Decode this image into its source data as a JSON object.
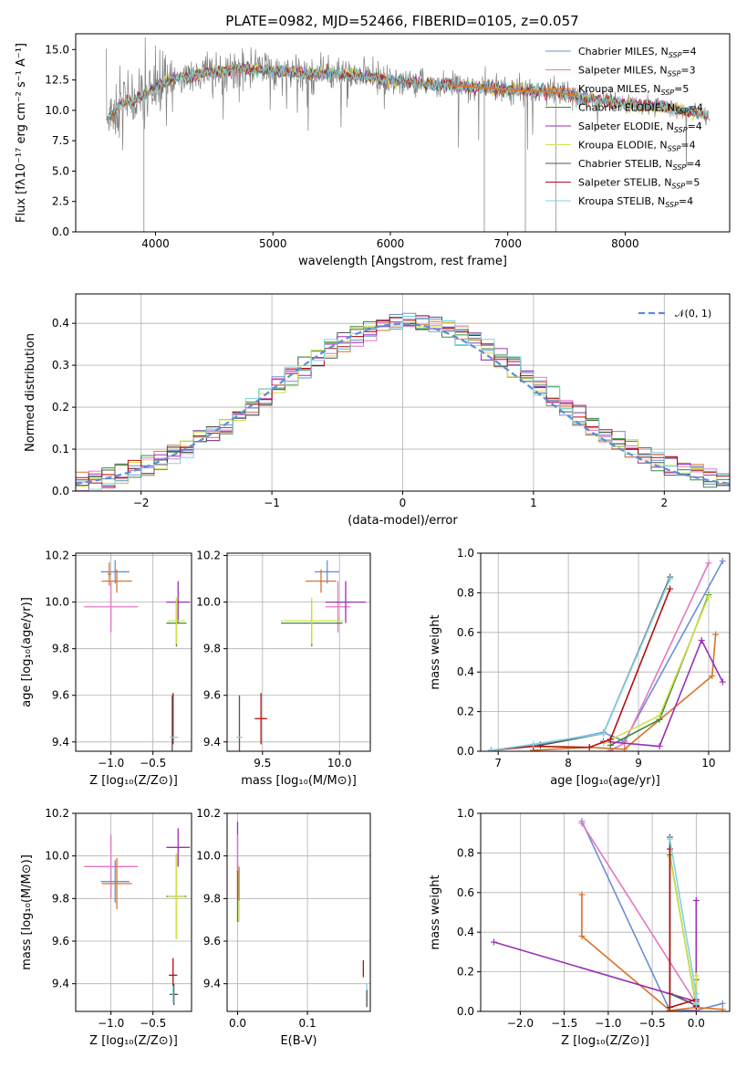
{
  "figure_title": "PLATE=0982, MJD=52466, FIBERID=0105, z=0.057",
  "colors": {
    "Chabrier MILES": "#6b8fd6",
    "Salpeter MILES": "#e377c2",
    "Kroupa MILES": "#d9742a",
    "Chabrier ELODIE": "#3a8a3a",
    "Salpeter ELODIE": "#9b30b5",
    "Kroupa ELODIE": "#d4e04a",
    "Chabrier STELIB": "#555555",
    "Salpeter STELIB": "#b01010",
    "Kroupa STELIB": "#7fd3e0",
    "data": "#808080",
    "gauss": "#5a8fd6",
    "extra_green": "#7cc030"
  },
  "chart_data": [
    {
      "id": "spectrum",
      "type": "line",
      "title": "PLATE=0982, MJD=52466, FIBERID=0105, z=0.057",
      "xlabel": "wavelength [Angstrom, rest frame]",
      "ylabel": "Flux [fλ10⁻¹⁷ erg cm⁻² s⁻¹ A⁻¹]",
      "xlim": [
        3320,
        8890
      ],
      "ylim": [
        0,
        16.3
      ],
      "xticks": [
        4000,
        5000,
        6000,
        7000,
        8000
      ],
      "yticks": [
        0.0,
        2.5,
        5.0,
        7.5,
        10.0,
        12.5,
        15.0
      ],
      "grid": false,
      "legend_position": "top-right",
      "legend": [
        {
          "label": "Chabrier MILES, N",
          "sub": "SSP",
          "suffix": "=4"
        },
        {
          "label": "Salpeter MILES, N",
          "sub": "SSP",
          "suffix": "=3"
        },
        {
          "label": "Kroupa MILES, N",
          "sub": "SSP",
          "suffix": "=5"
        },
        {
          "label": "Chabrier ELODIE, N",
          "sub": "SSP",
          "suffix": "=4"
        },
        {
          "label": "Salpeter ELODIE, N",
          "sub": "SSP",
          "suffix": "=4"
        },
        {
          "label": "Kroupa ELODIE, N",
          "sub": "SSP",
          "suffix": "=4"
        },
        {
          "label": "Chabrier STELIB, N",
          "sub": "SSP",
          "suffix": "=4"
        },
        {
          "label": "Salpeter STELIB, N",
          "sub": "SSP",
          "suffix": "=5"
        },
        {
          "label": "Kroupa STELIB, N",
          "sub": "SSP",
          "suffix": "=4"
        }
      ],
      "continuum": [
        [
          3600,
          9.5
        ],
        [
          3700,
          10.5
        ],
        [
          3800,
          10.8
        ],
        [
          3900,
          11.2
        ],
        [
          4000,
          11.8
        ],
        [
          4100,
          12.5
        ],
        [
          4300,
          12.8
        ],
        [
          4500,
          13.2
        ],
        [
          4800,
          13.4
        ],
        [
          5000,
          13.3
        ],
        [
          5200,
          13.1
        ],
        [
          5500,
          13.0
        ],
        [
          5800,
          12.7
        ],
        [
          6000,
          12.5
        ],
        [
          6300,
          12.2
        ],
        [
          6600,
          12.0
        ],
        [
          7000,
          11.7
        ],
        [
          7400,
          11.5
        ],
        [
          7600,
          11.2
        ],
        [
          7800,
          10.8
        ],
        [
          8000,
          10.5
        ],
        [
          8300,
          10.3
        ],
        [
          8600,
          9.8
        ],
        [
          8700,
          9.5
        ]
      ],
      "data_range": [
        3580,
        8720
      ],
      "model_range": [
        3600,
        8700
      ],
      "orange_segment": [
        6500,
        7600
      ],
      "dips": [
        {
          "x": 3900,
          "y": 0.0
        },
        {
          "x": 6800,
          "y": 0.0
        },
        {
          "x": 7150,
          "y": 0.0
        },
        {
          "x": 7410,
          "y": 0.0
        }
      ]
    },
    {
      "id": "residuals",
      "type": "histogram",
      "xlabel": "(data-model)/error",
      "ylabel": "Normed distribution",
      "xlim": [
        -2.5,
        2.5
      ],
      "ylim": [
        0,
        0.47
      ],
      "xticks": [
        -2,
        -1,
        0,
        1,
        2
      ],
      "yticks": [
        0.0,
        0.1,
        0.2,
        0.3,
        0.4
      ],
      "grid": true,
      "legend_position": "top-right",
      "legend_label": "𝒩(0, 1)",
      "bin_width": 0.1,
      "gaussian": {
        "mean": 0,
        "sigma": 1
      }
    },
    {
      "id": "age_vs_Z",
      "type": "errorbar",
      "xlabel": "Z [log₁₀(Z/Z⊙)]",
      "ylabel": "age  [log₁₀(age/yr)]",
      "xlim": [
        -1.42,
        -0.04
      ],
      "ylim": [
        9.36,
        10.21
      ],
      "xticks": [
        -1.0,
        -0.5
      ],
      "yticks": [
        9.4,
        9.6,
        9.8,
        10.0,
        10.2
      ],
      "grid": true,
      "points": [
        {
          "model": "Chabrier MILES",
          "x": -0.95,
          "y": 10.13,
          "xerr": 0.17,
          "yerr": 0.05
        },
        {
          "model": "Kroupa MILES",
          "x": -0.93,
          "y": 10.09,
          "xerr": 0.18,
          "yerr": 0.05
        },
        {
          "model": "Salpeter MILES",
          "x": -1.0,
          "y": 9.98,
          "xerr": 0.32,
          "yerr": 0.11
        },
        {
          "model": "Kroupa MILES",
          "x": -1.02,
          "y": 10.12,
          "xerr": 0.02,
          "yerr": 0.05
        },
        {
          "model": "Salpeter ELODIE",
          "x": -0.2,
          "y": 10.0,
          "xerr": 0.14,
          "yerr": 0.09
        },
        {
          "model": "Chabrier ELODIE",
          "x": -0.22,
          "y": 9.91,
          "xerr": 0.12,
          "yerr": 0.1
        },
        {
          "model": "Kroupa ELODIE",
          "x": -0.22,
          "y": 9.92,
          "xerr": 0.1,
          "yerr": 0.1
        },
        {
          "model": "Salpeter STELIB",
          "x": -0.26,
          "y": 9.5,
          "xerr": 0.0,
          "yerr": 0.11
        },
        {
          "model": "Chabrier STELIB",
          "x": -0.27,
          "y": 9.46,
          "xerr": 0.0,
          "yerr": 0.14
        },
        {
          "model": "Kroupa STELIB",
          "x": -0.25,
          "y": 9.42,
          "xerr": 0.05,
          "yerr": 0.0
        }
      ]
    },
    {
      "id": "age_vs_mass",
      "type": "errorbar",
      "xlabel": "mass [log₁₀(M/M⊙)]",
      "ylabel": "",
      "xlim": [
        9.27,
        10.2
      ],
      "ylim": [
        9.36,
        10.21
      ],
      "xticks": [
        9.5,
        10.0
      ],
      "yticks": [
        9.4,
        9.6,
        9.8,
        10.0,
        10.2
      ],
      "grid": true,
      "points": [
        {
          "model": "Chabrier MILES",
          "x": 9.92,
          "y": 10.13,
          "xerr": 0.08,
          "yerr": 0.05
        },
        {
          "model": "Kroupa MILES",
          "x": 9.88,
          "y": 10.09,
          "xerr": 0.1,
          "yerr": 0.05
        },
        {
          "model": "Salpeter MILES",
          "x": 9.99,
          "y": 9.98,
          "xerr": 0.08,
          "yerr": 0.11
        },
        {
          "model": "Salpeter ELODIE",
          "x": 10.04,
          "y": 10.0,
          "xerr": 0.13,
          "yerr": 0.09
        },
        {
          "model": "Chabrier ELODIE",
          "x": 9.82,
          "y": 9.91,
          "xerr": 0.2,
          "yerr": 0.1
        },
        {
          "model": "Kroupa ELODIE",
          "x": 9.82,
          "y": 9.92,
          "xerr": 0.2,
          "yerr": 0.1
        },
        {
          "model": "Salpeter STELIB",
          "x": 9.49,
          "y": 9.5,
          "xerr": 0.04,
          "yerr": 0.11
        },
        {
          "model": "Chabrier STELIB",
          "x": 9.35,
          "y": 9.46,
          "xerr": 0.0,
          "yerr": 0.14
        },
        {
          "model": "Kroupa STELIB",
          "x": 9.35,
          "y": 9.42,
          "xerr": 0.02,
          "yerr": 0.0
        }
      ]
    },
    {
      "id": "mw_vs_age",
      "type": "line",
      "xlabel": "age  [log₁₀(age/yr)]",
      "ylabel": "mass weight",
      "xlim": [
        6.75,
        10.3
      ],
      "ylim": [
        0,
        1.0
      ],
      "xticks": [
        7,
        8,
        9,
        10
      ],
      "yticks": [
        0.0,
        0.2,
        0.4,
        0.6,
        0.8,
        1.0
      ],
      "grid": true,
      "series": [
        {
          "model": "Chabrier MILES",
          "x": [
            6.9,
            7.6,
            8.5,
            8.8,
            10.2
          ],
          "y": [
            0.005,
            0.035,
            0.095,
            0.05,
            0.96
          ]
        },
        {
          "model": "Salpeter MILES",
          "x": [
            8.6,
            8.8,
            10.0
          ],
          "y": [
            0.005,
            0.04,
            0.95
          ]
        },
        {
          "model": "Kroupa MILES",
          "x": [
            7.5,
            8.3,
            8.8,
            10.05,
            10.1
          ],
          "y": [
            0.005,
            0.02,
            0.01,
            0.38,
            0.59
          ]
        },
        {
          "model": "Chabrier ELODIE",
          "x": [
            8.6,
            9.3,
            10.0
          ],
          "y": [
            0.03,
            0.16,
            0.79
          ]
        },
        {
          "model": "Salpeter ELODIE",
          "x": [
            8.5,
            9.3,
            9.9,
            10.2
          ],
          "y": [
            0.05,
            0.025,
            0.56,
            0.35
          ]
        },
        {
          "model": "Kroupa ELODIE",
          "x": [
            8.5,
            9.3,
            10.0
          ],
          "y": [
            0.04,
            0.18,
            0.78
          ]
        },
        {
          "model": "Chabrier STELIB",
          "x": [
            7.6,
            8.5,
            9.45
          ],
          "y": [
            0.03,
            0.09,
            0.88
          ]
        },
        {
          "model": "Salpeter STELIB",
          "x": [
            6.9,
            7.5,
            8.3,
            8.6,
            9.45
          ],
          "y": [
            0.005,
            0.025,
            0.02,
            0.06,
            0.82
          ]
        },
        {
          "model": "Kroupa STELIB",
          "x": [
            6.9,
            7.5,
            8.5,
            9.45
          ],
          "y": [
            0.005,
            0.035,
            0.09,
            0.87
          ]
        }
      ]
    },
    {
      "id": "mass_vs_Z",
      "type": "errorbar",
      "xlabel": "Z [log₁₀(Z/Z⊙)]",
      "ylabel": "mass [log₁₀(M/M⊙)]",
      "xlim": [
        -1.42,
        -0.04
      ],
      "ylim": [
        9.27,
        10.2
      ],
      "xticks": [
        -1.0,
        -0.5
      ],
      "yticks": [
        9.4,
        9.6,
        9.8,
        10.0,
        10.2
      ],
      "grid": true,
      "points": [
        {
          "model": "Salpeter MILES",
          "x": -1.0,
          "y": 9.95,
          "xerr": 0.32,
          "yerr": 0.15
        },
        {
          "model": "Chabrier MILES",
          "x": -0.95,
          "y": 9.88,
          "xerr": 0.17,
          "yerr": 0.1
        },
        {
          "model": "Kroupa MILES",
          "x": -0.93,
          "y": 9.87,
          "xerr": 0.18,
          "yerr": 0.12
        },
        {
          "model": "Salpeter ELODIE",
          "x": -0.2,
          "y": 10.04,
          "xerr": 0.14,
          "yerr": 0.09
        },
        {
          "model": "Chabrier ELODIE",
          "x": -0.22,
          "y": 9.81,
          "xerr": 0.12,
          "yerr": 0.2
        },
        {
          "model": "Kroupa ELODIE",
          "x": -0.22,
          "y": 9.81,
          "xerr": 0.1,
          "yerr": 0.2
        },
        {
          "model": "Salpeter STELIB",
          "x": -0.26,
          "y": 9.44,
          "xerr": 0.05,
          "yerr": 0.08
        },
        {
          "model": "Chabrier STELIB",
          "x": -0.25,
          "y": 9.35,
          "xerr": 0.05,
          "yerr": 0.05
        },
        {
          "model": "Kroupa STELIB",
          "x": -0.26,
          "y": 9.35,
          "xerr": 0.0,
          "yerr": 0.04
        }
      ]
    },
    {
      "id": "mass_vs_ebv",
      "type": "errorbar",
      "xlabel": "E(B-V)",
      "ylabel": "",
      "xlim": [
        -0.015,
        0.19
      ],
      "ylim": [
        9.27,
        10.2
      ],
      "xticks": [
        0.0,
        0.1
      ],
      "yticks": [
        9.4,
        9.6,
        9.8,
        10.0,
        10.2
      ],
      "grid": true,
      "points": [
        {
          "model": "Salpeter ELODIE",
          "x": 0.0,
          "y": 10.04,
          "xerr": 0.0,
          "yerr": 0.12
        },
        {
          "model": "Salpeter MILES",
          "x": 0.0,
          "y": 9.95,
          "xerr": 0.0,
          "yerr": 0.15
        },
        {
          "model": "Kroupa ELODIE",
          "x": 0.002,
          "y": 9.81,
          "xerr": 0.0,
          "yerr": 0.12
        },
        {
          "model": "Kroupa MILES",
          "x": 0.002,
          "y": 9.87,
          "xerr": 0.0,
          "yerr": 0.08
        },
        {
          "model": "Chabrier ELODIE",
          "x": 0.0,
          "y": 9.81,
          "xerr": 0.0,
          "yerr": 0.12
        },
        {
          "model": "Salpeter STELIB",
          "x": 0.18,
          "y": 9.47,
          "xerr": 0.0,
          "yerr": 0.04
        },
        {
          "model": "Kroupa STELIB",
          "x": 0.185,
          "y": 9.35,
          "xerr": 0.0,
          "yerr": 0.05
        },
        {
          "model": "Chabrier STELIB",
          "x": 0.185,
          "y": 9.33,
          "xerr": 0.0,
          "yerr": 0.04
        }
      ]
    },
    {
      "id": "mw_vs_Z",
      "type": "line",
      "xlabel": "Z [log₁₀(Z/Z⊙)]",
      "ylabel": "mass weight",
      "xlim": [
        -2.45,
        0.38
      ],
      "ylim": [
        0,
        1.0
      ],
      "xticks": [
        -2.0,
        -1.5,
        -1.0,
        -0.5,
        0.0
      ],
      "yticks": [
        0.0,
        0.2,
        0.4,
        0.6,
        0.8,
        1.0
      ],
      "grid": true,
      "series": [
        {
          "model": "Chabrier MILES",
          "x": [
            -1.3,
            -0.3,
            0.0,
            0.3
          ],
          "y": [
            0.96,
            0.005,
            0.005,
            0.04
          ]
        },
        {
          "model": "Salpeter MILES",
          "x": [
            -1.3,
            0.0,
            0.0
          ],
          "y": [
            0.95,
            0.04,
            0.005
          ]
        },
        {
          "model": "Kroupa MILES",
          "x": [
            -1.3,
            -1.3,
            -0.3,
            0.0,
            0.3
          ],
          "y": [
            0.59,
            0.38,
            0.005,
            0.02,
            0.01
          ]
        },
        {
          "model": "Chabrier ELODIE",
          "x": [
            -0.3,
            0.0,
            0.0
          ],
          "y": [
            0.79,
            0.03,
            0.16
          ]
        },
        {
          "model": "Salpeter ELODIE",
          "x": [
            -2.3,
            0.0,
            0.0,
            0.0
          ],
          "y": [
            0.35,
            0.05,
            0.56,
            0.025
          ]
        },
        {
          "model": "Kroupa ELODIE",
          "x": [
            -0.3,
            0.0,
            0.0
          ],
          "y": [
            0.78,
            0.04,
            0.18
          ]
        },
        {
          "model": "Chabrier STELIB",
          "x": [
            -0.3,
            -0.3,
            0.0
          ],
          "y": [
            0.88,
            0.09,
            0.03
          ]
        },
        {
          "model": "Salpeter STELIB",
          "x": [
            -0.3,
            -0.3,
            0.0,
            0.0
          ],
          "y": [
            0.82,
            0.02,
            0.06,
            0.025
          ]
        },
        {
          "model": "Kroupa STELIB",
          "x": [
            -0.3,
            0.0,
            0.0
          ],
          "y": [
            0.87,
            0.09,
            0.035
          ]
        }
      ]
    }
  ]
}
